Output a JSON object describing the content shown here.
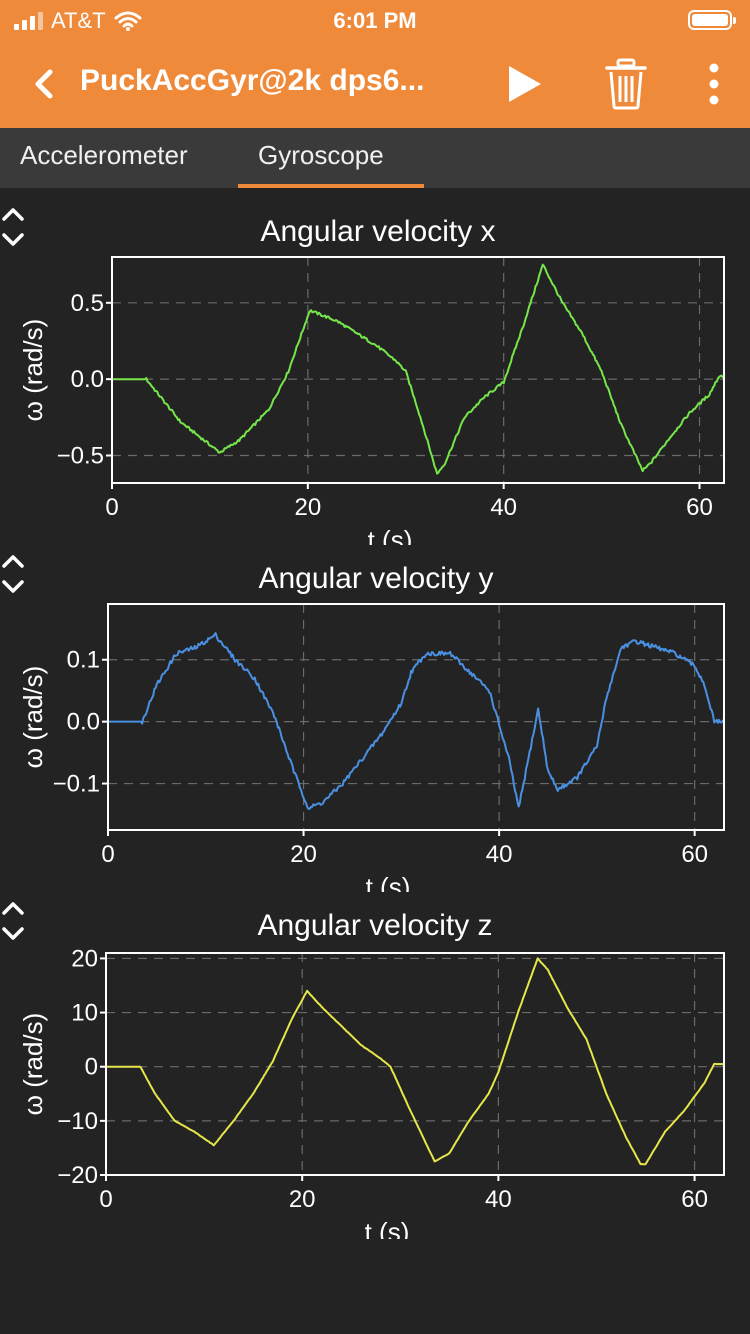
{
  "status": {
    "carrier": "AT&T",
    "time": "6:01 PM"
  },
  "appbar": {
    "title": "PuckAccGyr@2k dps6...",
    "icons": [
      "back-chevron-icon",
      "play-icon",
      "trash-icon",
      "more-vertical-icon"
    ]
  },
  "tabs": [
    {
      "label": "Accelerometer",
      "selected": false
    },
    {
      "label": "Gyroscope",
      "selected": true
    }
  ],
  "colors": {
    "accent": "#ef8a3a",
    "background": "#232323",
    "x_series": "#76e64a",
    "y_series": "#4a90e2",
    "z_series": "#e6e64a"
  },
  "chart_data": [
    {
      "type": "line",
      "title": "Angular velocity x",
      "xlabel": "t (s)",
      "ylabel": "ω (rad/s)",
      "xlim": [
        0,
        62.5
      ],
      "ylim": [
        -0.68,
        0.8
      ],
      "xticks": [
        0,
        20,
        40,
        60
      ],
      "yticks": [
        0.5,
        0.0,
        -0.5
      ],
      "ytick_labels": [
        "0.5",
        "0.0",
        "−0.5"
      ],
      "grid": true,
      "series": [
        {
          "x": [
            0,
            3.5,
            5,
            7,
            9,
            11,
            13,
            16,
            18,
            20.2,
            21,
            23,
            25,
            27,
            29,
            30,
            31.5,
            33.2,
            34,
            36,
            38,
            40,
            42,
            44,
            46,
            48,
            50,
            52,
            54.2,
            55,
            57,
            59,
            61,
            62,
            62.5
          ],
          "y": [
            0,
            0,
            -0.12,
            -0.28,
            -0.38,
            -0.48,
            -0.4,
            -0.2,
            0.05,
            0.45,
            0.43,
            0.38,
            0.3,
            0.22,
            0.12,
            0.05,
            -0.25,
            -0.62,
            -0.55,
            -0.25,
            -0.12,
            -0.02,
            0.35,
            0.75,
            0.5,
            0.3,
            0.05,
            -0.3,
            -0.6,
            -0.55,
            -0.38,
            -0.22,
            -0.1,
            0.02,
            0.02
          ]
        }
      ]
    },
    {
      "type": "line",
      "title": "Angular velocity y",
      "xlabel": "t (s)",
      "ylabel": "ω (rad/s)",
      "xlim": [
        0,
        63
      ],
      "ylim": [
        -0.175,
        0.19
      ],
      "xticks": [
        0,
        20,
        40,
        60
      ],
      "yticks": [
        0.1,
        0.0,
        -0.1
      ],
      "ytick_labels": [
        "0.1",
        "0.0",
        "−0.1"
      ],
      "grid": true,
      "series": [
        {
          "x": [
            0,
            3.5,
            5,
            7,
            9,
            11,
            13,
            15,
            17,
            19,
            20.5,
            22,
            24,
            26,
            28,
            30,
            31,
            32.5,
            33.5,
            35,
            37,
            39,
            41,
            42,
            43,
            44,
            45,
            46,
            48,
            50,
            51,
            52.5,
            54,
            56,
            58,
            60,
            61,
            62,
            63
          ],
          "y": [
            0,
            0,
            0.06,
            0.11,
            0.12,
            0.14,
            0.1,
            0.07,
            0.01,
            -0.08,
            -0.14,
            -0.13,
            -0.1,
            -0.06,
            -0.02,
            0.03,
            0.08,
            0.11,
            0.11,
            0.11,
            0.08,
            0.05,
            -0.06,
            -0.14,
            -0.06,
            0.02,
            -0.08,
            -0.11,
            -0.09,
            -0.04,
            0.04,
            0.12,
            0.13,
            0.12,
            0.11,
            0.09,
            0.06,
            0.0,
            0.0
          ]
        }
      ]
    },
    {
      "type": "line",
      "title": "Angular velocity z",
      "xlabel": "t (s)",
      "ylabel": "ω (rad/s)",
      "xlim": [
        0,
        63
      ],
      "ylim": [
        -20,
        21
      ],
      "xticks": [
        0,
        20,
        40,
        60
      ],
      "yticks": [
        20,
        10,
        0,
        -10,
        -20
      ],
      "ytick_labels": [
        "20",
        "10",
        "0",
        "−10",
        "−20"
      ],
      "grid": true,
      "series": [
        {
          "x": [
            0,
            3.5,
            5,
            7,
            9,
            11,
            13,
            15,
            17,
            19,
            20.5,
            22,
            24,
            26,
            28,
            29,
            31,
            33.5,
            35,
            37,
            39,
            40,
            42,
            44,
            45,
            47,
            49,
            51,
            53,
            54.5,
            55,
            57,
            59,
            61,
            62,
            63
          ],
          "y": [
            0,
            0,
            -5,
            -10,
            -12,
            -14.5,
            -10,
            -5,
            1,
            9,
            14,
            11,
            7.5,
            4,
            1.5,
            0,
            -8,
            -17.5,
            -16,
            -10,
            -5,
            -1,
            10,
            20,
            18,
            11,
            5,
            -5,
            -13,
            -18,
            -18,
            -12,
            -8,
            -3,
            0.5,
            0.5
          ]
        }
      ]
    }
  ]
}
